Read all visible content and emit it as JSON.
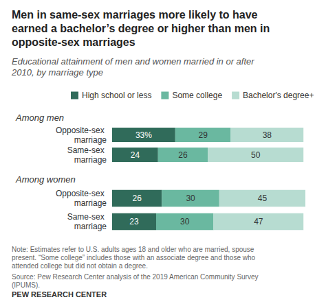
{
  "chart_data": {
    "type": "bar",
    "orientation": "horizontal",
    "stacked": true,
    "data_labels": true,
    "tick_labels": "y",
    "legend": "top",
    "title": "Men in same-sex marriages more likely to have earned a bachelor’s degree or higher than men in opposite-sex marriages",
    "subtitle": "Educational attainment of men and women married in or after 2010, by marriage type",
    "note": "Note: Estimates refer to U.S. adults ages 18 and older who are married, spouse present. “Some college” includes those with an associate degree and those who attended college but did not obtain a degree.",
    "source": "Source: Pew Research Center analysis of the 2019 American Community Survey (IPUMS).",
    "credit": "PEW RESEARCH CENTER",
    "category_groups": [
      "Among men",
      "Among men",
      "Among women",
      "Among women"
    ],
    "categories": [
      "Opposite-sex marriage",
      "Same-sex marriage",
      "Opposite-sex marriage",
      "Same-sex marriage"
    ],
    "xlim": [
      0,
      101
    ],
    "series": [
      {
        "name": "High school or less",
        "color": "#306b5a",
        "values": [
          33,
          24,
          26,
          23
        ],
        "value_labels": [
          "33%",
          "24",
          "26",
          "23"
        ]
      },
      {
        "name": "Some college",
        "color": "#6ab8a0",
        "values": [
          29,
          26,
          30,
          30
        ]
      },
      {
        "name": "Bachelor's degree+",
        "color": "#b7dcd1",
        "values": [
          38,
          50,
          45,
          47
        ]
      }
    ]
  }
}
